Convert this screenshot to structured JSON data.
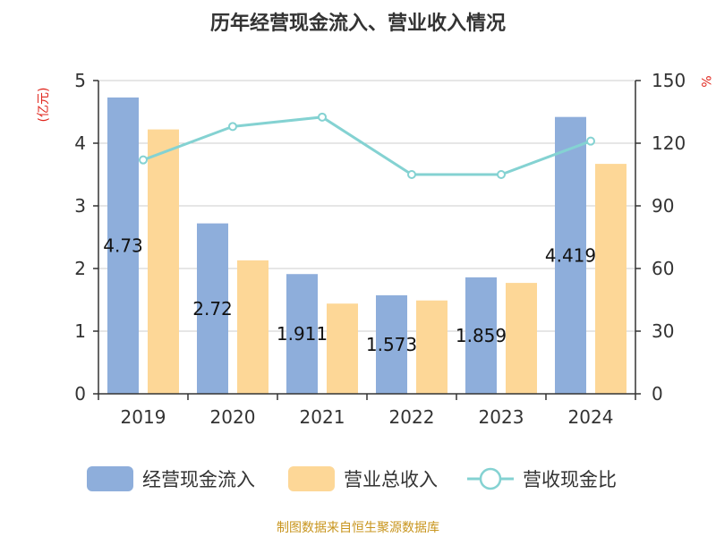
{
  "chart_data": {
    "type": "bar",
    "title": "历年经营现金流入、营业收入情况",
    "categories": [
      "2019",
      "2020",
      "2021",
      "2022",
      "2023",
      "2024"
    ],
    "series": [
      {
        "name": "经营现金流入",
        "axis": "left",
        "kind": "bar",
        "color": "#8eaedb",
        "values": [
          4.73,
          2.72,
          1.911,
          1.573,
          1.859,
          4.419
        ],
        "data_labels": [
          "4.73",
          "2.72",
          "1.911",
          "1.573",
          "1.859",
          "4.419"
        ]
      },
      {
        "name": "营业总收入",
        "axis": "left",
        "kind": "bar",
        "color": "#fdd797",
        "values": [
          4.22,
          2.13,
          1.44,
          1.49,
          1.77,
          3.67
        ]
      },
      {
        "name": "营收现金比",
        "axis": "right",
        "kind": "line",
        "color": "#84d2d2",
        "values": [
          112,
          128,
          132.5,
          105,
          105,
          121
        ]
      }
    ],
    "left_axis": {
      "unit": "(亿元)",
      "ylim": [
        0,
        5
      ],
      "ticks": [
        "0",
        "1",
        "2",
        "3",
        "4",
        "5"
      ]
    },
    "right_axis": {
      "unit": "%",
      "ylim": [
        0,
        150
      ],
      "ticks": [
        "0",
        "30",
        "60",
        "90",
        "120",
        "150"
      ]
    },
    "grid": true,
    "legend_position": "bottom",
    "source": "制图数据来自恒生聚源数据库"
  }
}
